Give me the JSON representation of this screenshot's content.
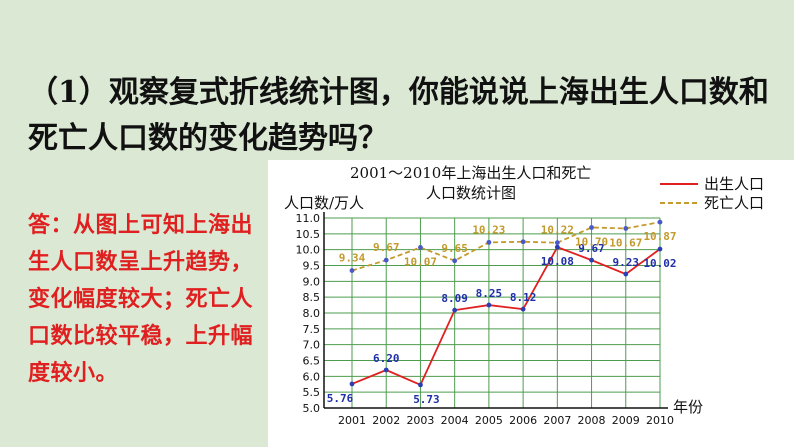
{
  "question": "（1）观察复式折线统计图，你能说说上海出生人口数和死亡人口数的变化趋势吗？",
  "answer": "答：从图上可知上海出生人口数呈上升趋势，变化幅度较大；死亡人口数比较平稳，上升幅度较小。",
  "chart_data": {
    "type": "line",
    "title_line1": "2001～2010年上海出生人口和死亡",
    "title_line2": "人口数统计图",
    "ylabel": "人口数/万人",
    "xlabel": "年份",
    "categories": [
      "2001",
      "2002",
      "2003",
      "2004",
      "2005",
      "2006",
      "2007",
      "2008",
      "2009",
      "2010"
    ],
    "y_ticks": [
      "5.0",
      "5.5",
      "6.0",
      "6.5",
      "7.0",
      "7.5",
      "8.0",
      "8.5",
      "9.0",
      "9.5",
      "10.0",
      "10.5",
      "11.0"
    ],
    "ylim": [
      5.0,
      11.0
    ],
    "series": [
      {
        "name": "出生人口",
        "values": [
          5.76,
          6.2,
          5.73,
          8.09,
          8.25,
          8.12,
          10.08,
          9.67,
          9.23,
          10.02
        ],
        "labels": [
          "5.76",
          "6.20",
          "5.73",
          "8.09",
          "8.25",
          "8.12",
          "10.08",
          "9.67",
          "9.23",
          "10.02"
        ],
        "color": "#e02020",
        "line_style": "solid"
      },
      {
        "name": "死亡人口",
        "values": [
          9.34,
          9.67,
          10.07,
          9.65,
          10.23,
          10.25,
          10.22,
          10.7,
          10.67,
          10.87
        ],
        "labels": [
          "9.34",
          "9.67",
          "10.07",
          "9.65",
          "10.23",
          "",
          "10.22",
          "10.70",
          "10.67",
          "10.87"
        ],
        "color": "#c49a2c",
        "line_style": "dashed"
      }
    ],
    "grid": true,
    "legend_position": "top-right"
  }
}
